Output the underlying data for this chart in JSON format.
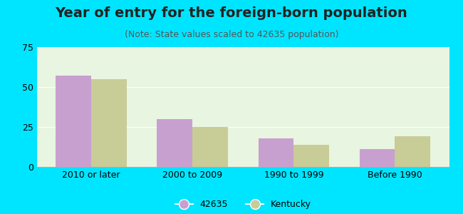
{
  "title": "Year of entry for the foreign-born population",
  "subtitle": "(Note: State values scaled to 42635 population)",
  "categories": [
    "2010 or later",
    "2000 to 2009",
    "1990 to 1999",
    "Before 1990"
  ],
  "values_42635": [
    57,
    30,
    18,
    11
  ],
  "values_kentucky": [
    55,
    25,
    14,
    19
  ],
  "bar_color_42635": "#c8a0d0",
  "bar_color_kentucky": "#c8cc96",
  "background_outer": "#00e5ff",
  "background_plot": "#e8f5e0",
  "ylim": [
    0,
    75
  ],
  "yticks": [
    0,
    25,
    50,
    75
  ],
  "legend_label_1": "42635",
  "legend_label_2": "Kentucky",
  "bar_width": 0.35,
  "title_fontsize": 14,
  "subtitle_fontsize": 9,
  "axis_fontsize": 9,
  "legend_fontsize": 9
}
